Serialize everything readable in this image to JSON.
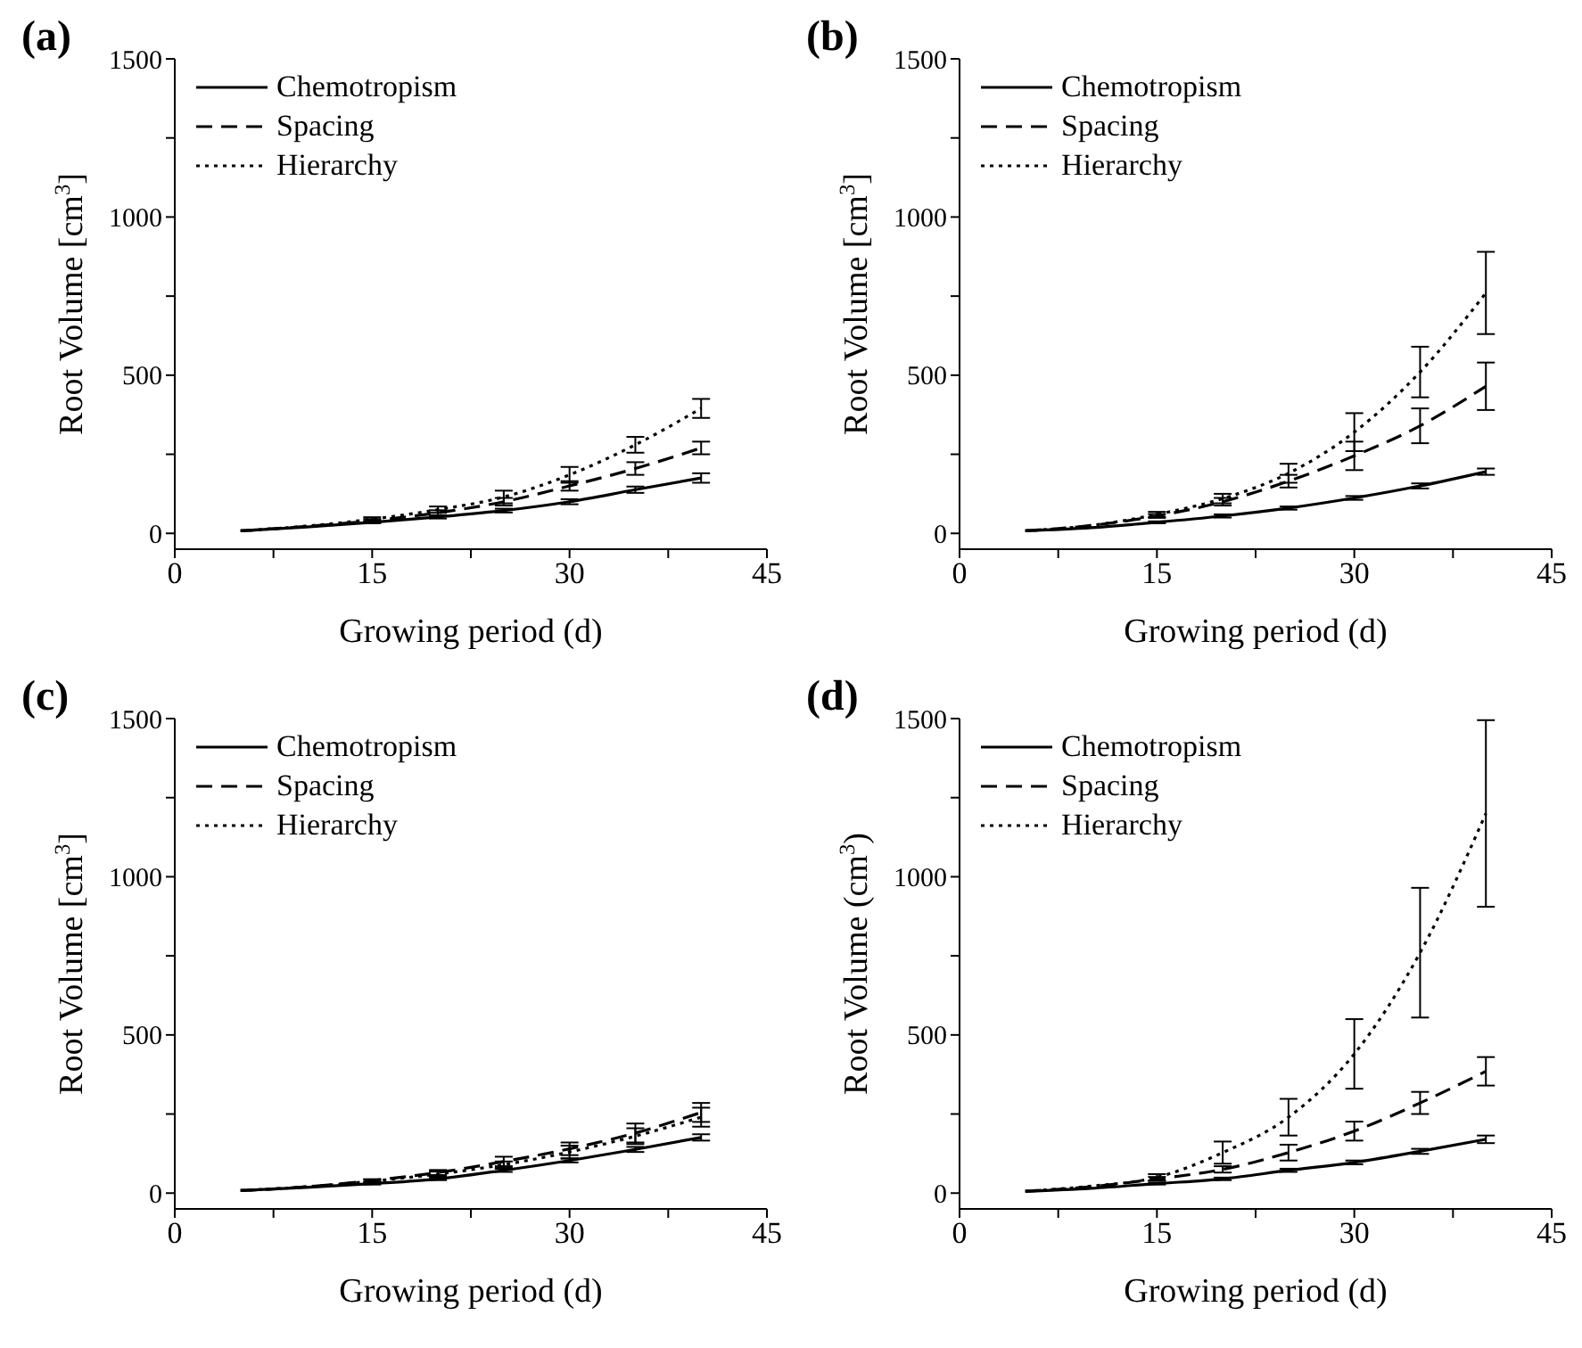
{
  "chart_data": [
    {
      "type": "line",
      "title": "(a)",
      "xlabel": "Growing period (d)",
      "ylabel": "Root Volume [cm$^{3}$]",
      "x": [
        5,
        10,
        15,
        20,
        25,
        30,
        35,
        40
      ],
      "xlim": [
        0,
        45
      ],
      "xticks": [
        0,
        {
          "value": 7.5,
          "label": null
        },
        15,
        {
          "value": 22.5,
          "label": null
        },
        30,
        {
          "value": 37.5,
          "label": null
        },
        45
      ],
      "ylim": [
        -50,
        1500
      ],
      "yticks": [
        0,
        {
          "value": 250,
          "label": null
        },
        500,
        {
          "value": 750,
          "label": null
        },
        1000,
        {
          "value": 1250,
          "label": null
        },
        1500
      ],
      "grid": false,
      "legend": "top left",
      "marker": "none",
      "series": [
        {
          "name": "Chemotropism",
          "color": "#000000",
          "line_style": "solid",
          "values": [
            8,
            20,
            35,
            52,
            72,
            100,
            138,
            175
          ],
          "errors": [
            null,
            null,
            3,
            5,
            6,
            8,
            10,
            15
          ]
        },
        {
          "name": "Spacing",
          "color": "#000000",
          "line_style": "dashed",
          "values": [
            8,
            22,
            40,
            65,
            100,
            150,
            205,
            270
          ],
          "errors": [
            null,
            null,
            5,
            8,
            12,
            15,
            20,
            20
          ]
        },
        {
          "name": "Hierarchy",
          "color": "#000000",
          "line_style": "dotted",
          "values": [
            8,
            23,
            45,
            75,
            115,
            185,
            280,
            395
          ],
          "errors": [
            null,
            null,
            6,
            10,
            20,
            25,
            25,
            30
          ]
        }
      ]
    },
    {
      "type": "line",
      "title": "(b)",
      "xlabel": "Growing period (d)",
      "ylabel": "Root Volume [cm$^{3}$]",
      "x": [
        5,
        10,
        15,
        20,
        25,
        30,
        35,
        40
      ],
      "xlim": [
        0,
        45
      ],
      "xticks": [
        0,
        {
          "value": 7.5,
          "label": null
        },
        15,
        {
          "value": 22.5,
          "label": null
        },
        30,
        {
          "value": 37.5,
          "label": null
        },
        45
      ],
      "ylim": [
        -50,
        1500
      ],
      "yticks": [
        0,
        {
          "value": 250,
          "label": null
        },
        500,
        {
          "value": 750,
          "label": null
        },
        1000,
        {
          "value": 1250,
          "label": null
        },
        1500
      ],
      "grid": false,
      "legend": "top left",
      "marker": "none",
      "series": [
        {
          "name": "Chemotropism",
          "color": "#000000",
          "line_style": "solid",
          "values": [
            8,
            18,
            35,
            55,
            80,
            112,
            150,
            195
          ],
          "errors": [
            null,
            null,
            3,
            5,
            5,
            6,
            8,
            10
          ]
        },
        {
          "name": "Spacing",
          "color": "#000000",
          "line_style": "dashed",
          "values": [
            8,
            25,
            55,
            100,
            165,
            245,
            340,
            465
          ],
          "errors": [
            null,
            null,
            6,
            12,
            20,
            45,
            55,
            75
          ]
        },
        {
          "name": "Hierarchy",
          "color": "#000000",
          "line_style": "dotted",
          "values": [
            8,
            25,
            60,
            110,
            190,
            320,
            510,
            760
          ],
          "errors": [
            null,
            null,
            8,
            15,
            30,
            60,
            80,
            130
          ]
        }
      ]
    },
    {
      "type": "line",
      "title": "(c)",
      "xlabel": "Growing period (d)",
      "ylabel": "Root Volume [cm$^{3}$]",
      "x": [
        5,
        10,
        15,
        20,
        25,
        30,
        35,
        40
      ],
      "xlim": [
        0,
        45
      ],
      "xticks": [
        0,
        {
          "value": 7.5,
          "label": null
        },
        15,
        {
          "value": 22.5,
          "label": null
        },
        30,
        {
          "value": 37.5,
          "label": null
        },
        45
      ],
      "ylim": [
        -50,
        1500
      ],
      "yticks": [
        0,
        {
          "value": 250,
          "label": null
        },
        500,
        {
          "value": 750,
          "label": null
        },
        1000,
        {
          "value": 1250,
          "label": null
        },
        1500
      ],
      "grid": false,
      "legend": "top left",
      "marker": "none",
      "series": [
        {
          "name": "Chemotropism",
          "color": "#000000",
          "line_style": "solid",
          "values": [
            8,
            18,
            30,
            45,
            72,
            103,
            138,
            176
          ],
          "errors": [
            null,
            null,
            3,
            4,
            5,
            6,
            8,
            10
          ]
        },
        {
          "name": "Spacing",
          "color": "#000000",
          "line_style": "dashed",
          "values": [
            8,
            20,
            40,
            65,
            100,
            140,
            190,
            255
          ],
          "errors": [
            null,
            null,
            4,
            8,
            15,
            20,
            30,
            30
          ]
        },
        {
          "name": "Hierarchy",
          "color": "#000000",
          "line_style": "dotted",
          "values": [
            8,
            20,
            38,
            60,
            90,
            130,
            180,
            240
          ],
          "errors": [
            null,
            null,
            4,
            8,
            10,
            20,
            25,
            30
          ]
        }
      ]
    },
    {
      "type": "line",
      "title": "(d)",
      "xlabel": "Growing period (d)",
      "ylabel": "Root Volume (cm$^{3}$)",
      "x": [
        5,
        10,
        15,
        20,
        25,
        30,
        35,
        40
      ],
      "xlim": [
        0,
        45
      ],
      "xticks": [
        0,
        {
          "value": 7.5,
          "label": null
        },
        15,
        {
          "value": 22.5,
          "label": null
        },
        30,
        {
          "value": 37.5,
          "label": null
        },
        45
      ],
      "ylim": [
        -50,
        1500
      ],
      "yticks": [
        0,
        {
          "value": 250,
          "label": null
        },
        500,
        {
          "value": 750,
          "label": null
        },
        1000,
        {
          "value": 1250,
          "label": null
        },
        1500
      ],
      "grid": false,
      "legend": "top left",
      "marker": "none",
      "series": [
        {
          "name": "Chemotropism",
          "color": "#000000",
          "line_style": "solid",
          "values": [
            5,
            15,
            30,
            45,
            72,
            97,
            132,
            170
          ],
          "errors": [
            null,
            null,
            3,
            4,
            5,
            6,
            8,
            12
          ]
        },
        {
          "name": "Spacing",
          "color": "#000000",
          "line_style": "dashed",
          "values": [
            6,
            20,
            45,
            75,
            128,
            196,
            285,
            385
          ],
          "errors": [
            null,
            null,
            6,
            10,
            25,
            30,
            35,
            45
          ]
        },
        {
          "name": "Hierarchy",
          "color": "#000000",
          "line_style": "dotted",
          "values": [
            6,
            22,
            50,
            128,
            240,
            440,
            760,
            1200
          ],
          "errors": [
            null,
            null,
            10,
            35,
            58,
            110,
            205,
            295
          ]
        }
      ]
    }
  ]
}
